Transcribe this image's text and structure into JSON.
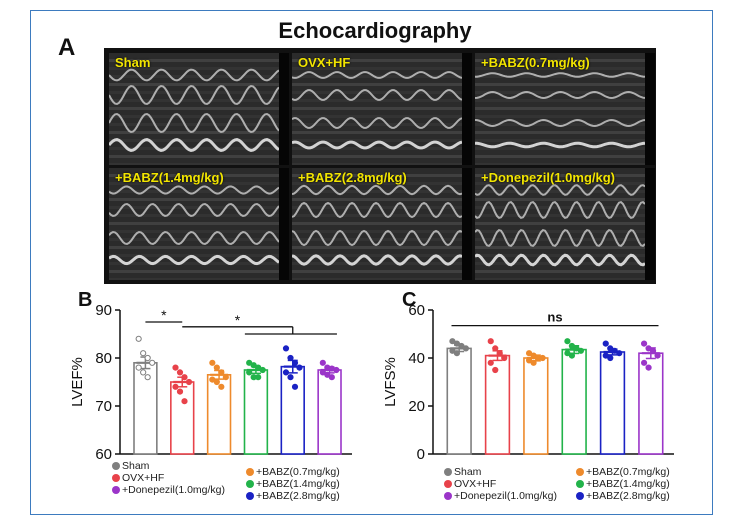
{
  "figure": {
    "title": "Echocardiography",
    "panel_a": "A",
    "panel_b": "B",
    "panel_c": "C"
  },
  "echo_images": [
    {
      "label": "Sham"
    },
    {
      "label": "OVX+HF"
    },
    {
      "label": "+BABZ(0.7mg/kg)"
    },
    {
      "label": "+BABZ(1.4mg/kg)"
    },
    {
      "label": "+BABZ(2.8mg/kg)"
    },
    {
      "label": "+Donepezil(1.0mg/kg)"
    }
  ],
  "colors": {
    "Sham": "#7f7f7f",
    "OVX+HF": "#e8424a",
    "+BABZ(0.7mg/kg)": "#ee8a2c",
    "+BABZ(1.4mg/kg)": "#22b34a",
    "+BABZ(2.8mg/kg)": "#1a22c4",
    "+Donepezil(1.0mg/kg)": "#9b35c9"
  },
  "legend": {
    "left": [
      "Sham",
      "OVX+HF",
      "+Donepezil(1.0mg/kg)"
    ],
    "right": [
      "+BABZ(0.7mg/kg)",
      "+BABZ(1.4mg/kg)",
      "+BABZ(2.8mg/kg)"
    ]
  },
  "chart_data": [
    {
      "type": "bar",
      "panel": "B",
      "ylabel": "LVEF%",
      "ylim": [
        60,
        90
      ],
      "yticks": [
        "60",
        "70",
        "80",
        "90"
      ],
      "categories": [
        "Sham",
        "OVX+HF",
        "+BABZ(0.7mg/kg)",
        "+BABZ(1.4mg/kg)",
        "+BABZ(2.8mg/kg)",
        "+Donepezil(1.0mg/kg)"
      ],
      "values": [
        79.0,
        75.0,
        76.5,
        77.5,
        78.2,
        77.5
      ],
      "errors": [
        1.2,
        1.0,
        0.9,
        0.7,
        1.3,
        0.6
      ],
      "points": [
        [
          84,
          81,
          80,
          79,
          78,
          77,
          76
        ],
        [
          78,
          77,
          76,
          75,
          74,
          73,
          71
        ],
        [
          79,
          78,
          77,
          76,
          75.5,
          75,
          74
        ],
        [
          79,
          78.5,
          78,
          77.5,
          77,
          76,
          76
        ],
        [
          82,
          80,
          79,
          78,
          77,
          76,
          74
        ],
        [
          79,
          78,
          77.8,
          77.5,
          77,
          76.5,
          76
        ]
      ],
      "annotations": [
        "*",
        "*"
      ]
    },
    {
      "type": "bar",
      "panel": "C",
      "ylabel": "LVFS%",
      "ylim": [
        0,
        60
      ],
      "yticks": [
        "0",
        "20",
        "40",
        "60"
      ],
      "categories": [
        "Sham",
        "OVX+HF",
        "+BABZ(0.7mg/kg)",
        "+BABZ(1.4mg/kg)",
        "+BABZ(2.8mg/kg)",
        "+Donepezil(1.0mg/kg)"
      ],
      "values": [
        44,
        41,
        40,
        43.5,
        42.5,
        42
      ],
      "errors": [
        1.3,
        2.0,
        1.2,
        1.6,
        1.2,
        2.2
      ],
      "points": [
        [
          47,
          46,
          45,
          44,
          43,
          42
        ],
        [
          47,
          44,
          42,
          40,
          38,
          35
        ],
        [
          42,
          41,
          40,
          40,
          39,
          38
        ],
        [
          47,
          45,
          44,
          43,
          42,
          41
        ],
        [
          46,
          44,
          43,
          42,
          41,
          40
        ],
        [
          46,
          44,
          43,
          41,
          38,
          36
        ]
      ],
      "annotations": [
        "ns"
      ]
    }
  ]
}
